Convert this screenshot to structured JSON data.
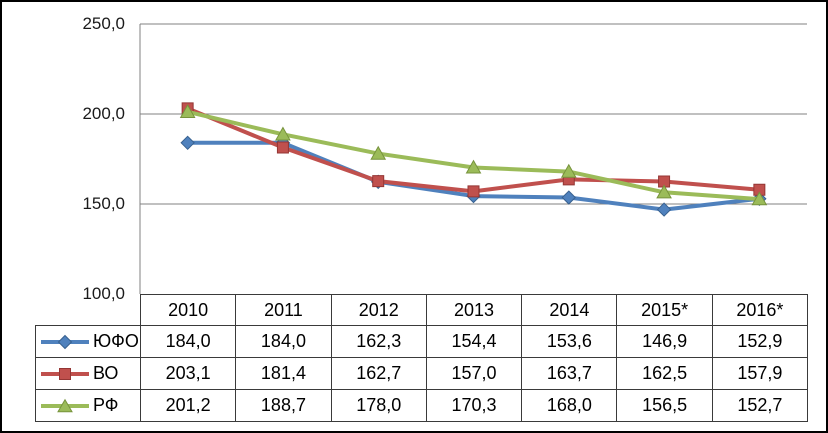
{
  "chart_data": {
    "type": "line",
    "title": "",
    "xlabel": "",
    "ylabel": "",
    "categories": [
      "2010",
      "2011",
      "2012",
      "2013",
      "2014",
      "2015*",
      "2016*"
    ],
    "series": [
      {
        "name": "ЮФО",
        "color": "#4F81BD",
        "edge_color": "#38618F",
        "marker": "diamond",
        "values": [
          184.0,
          184.0,
          162.3,
          154.4,
          153.6,
          146.9,
          152.9
        ]
      },
      {
        "name": "ВО",
        "color": "#C0504D",
        "edge_color": "#943634",
        "marker": "square",
        "values": [
          203.1,
          181.4,
          162.7,
          157.0,
          163.7,
          162.5,
          157.9
        ]
      },
      {
        "name": "РФ",
        "color": "#9BBB59",
        "edge_color": "#77933C",
        "marker": "triangle",
        "values": [
          201.2,
          188.7,
          178.0,
          170.3,
          168.0,
          156.5,
          152.7
        ]
      }
    ],
    "ylim": [
      100,
      250
    ],
    "yticks": [
      250,
      200,
      150,
      100
    ],
    "ytick_labels": [
      "250,0",
      "200,0",
      "150,0",
      "100,0"
    ],
    "grid": "horizontal",
    "gridline_color": "#808080",
    "legend_position": "in-data-table"
  },
  "table": {
    "columns": [
      "2010",
      "2011",
      "2012",
      "2013",
      "2014",
      "2015*",
      "2016*"
    ],
    "rows": [
      {
        "label": "ЮФО",
        "values": [
          "184,0",
          "184,0",
          "162,3",
          "154,4",
          "153,6",
          "146,9",
          "152,9"
        ]
      },
      {
        "label": "ВО",
        "values": [
          "203,1",
          "181,4",
          "162,7",
          "157,0",
          "163,7",
          "162,5",
          "157,9"
        ]
      },
      {
        "label": "РФ",
        "values": [
          "201,2",
          "188,7",
          "178,0",
          "170,3",
          "168,0",
          "156,5",
          "152,7"
        ]
      }
    ]
  }
}
